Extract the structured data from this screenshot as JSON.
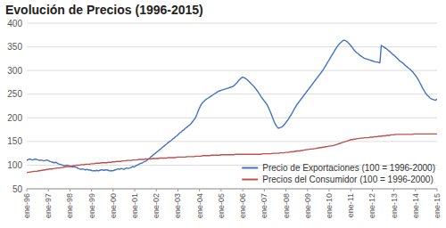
{
  "chart_data": {
    "type": "line",
    "title": "Evolución de Precios (1996-2015)",
    "xlim": [
      0,
      19
    ],
    "xticks": [
      {
        "value": 0,
        "label": "ene-96"
      },
      {
        "value": 1,
        "label": "ene-97"
      },
      {
        "value": 2,
        "label": "ene-98"
      },
      {
        "value": 3,
        "label": "ene-99"
      },
      {
        "value": 4,
        "label": "ene-00"
      },
      {
        "value": 5,
        "label": "ene-01"
      },
      {
        "value": 6,
        "label": "ene-02"
      },
      {
        "value": 7,
        "label": "ene-03"
      },
      {
        "value": 8,
        "label": "ene-04"
      },
      {
        "value": 9,
        "label": "ene-05"
      },
      {
        "value": 10,
        "label": "ene-06"
      },
      {
        "value": 11,
        "label": "ene-07"
      },
      {
        "value": 12,
        "label": "ene-08"
      },
      {
        "value": 13,
        "label": "ene-09"
      },
      {
        "value": 14,
        "label": "ene-10"
      },
      {
        "value": 15,
        "label": "ene-11"
      },
      {
        "value": 16,
        "label": "ene-12"
      },
      {
        "value": 17,
        "label": "ene-13"
      },
      {
        "value": 18,
        "label": "ene-14"
      },
      {
        "value": 19,
        "label": "ene-15"
      }
    ],
    "ylim": [
      50,
      400
    ],
    "yticks": [
      50,
      100,
      150,
      200,
      250,
      300,
      350,
      400
    ],
    "grid": true,
    "legend": "lower right",
    "series": [
      {
        "name": "Precio de Exportaciones (100 = 1996-2000)",
        "color": "#4472C4",
        "values": [
          110,
          112,
          113,
          112,
          111,
          112,
          113,
          112,
          111,
          110,
          111,
          110,
          109,
          110,
          111,
          110,
          108,
          107,
          106,
          105,
          106,
          105,
          103,
          102,
          101,
          100,
          99,
          99,
          100,
          99,
          98,
          97,
          96,
          97,
          96,
          95,
          93,
          92,
          91,
          92,
          91,
          90,
          91,
          90,
          90,
          89,
          88,
          88,
          88,
          89,
          88,
          89,
          90,
          90,
          89,
          90,
          90,
          89,
          88,
          88,
          88,
          89,
          90,
          91,
          92,
          91,
          93,
          92,
          91,
          93,
          94,
          93,
          94,
          95,
          97,
          96,
          98,
          100,
          101,
          103,
          104,
          105,
          107,
          108,
          110,
          113,
          115,
          118,
          120,
          123,
          125,
          128,
          130,
          133,
          135,
          138,
          140,
          143,
          145,
          148,
          150,
          152,
          155,
          157,
          160,
          162,
          165,
          168,
          170,
          173,
          175,
          178,
          180,
          183,
          185,
          188,
          192,
          196,
          200,
          207,
          215,
          222,
          228,
          232,
          235,
          238,
          240,
          242,
          244,
          246,
          248,
          250,
          252,
          254,
          256,
          257,
          258,
          259,
          260,
          261,
          262,
          263,
          264,
          265,
          266,
          268,
          271,
          274,
          278,
          281,
          284,
          286,
          285,
          283,
          281,
          278,
          275,
          272,
          269,
          266,
          262,
          258,
          254,
          249,
          244,
          240,
          236,
          232,
          228,
          222,
          215,
          208,
          200,
          192,
          186,
          181,
          178,
          179,
          180,
          182,
          185,
          189,
          193,
          197,
          202,
          207,
          212,
          218,
          223,
          228,
          232,
          236,
          240,
          244,
          248,
          252,
          256,
          260,
          264,
          268,
          272,
          276,
          280,
          284,
          288,
          292,
          296,
          300,
          305,
          310,
          315,
          320,
          325,
          330,
          335,
          340,
          345,
          350,
          354,
          357,
          360,
          363,
          364,
          363,
          361,
          358,
          355,
          351,
          347,
          343,
          340,
          337,
          335,
          332,
          330,
          328,
          326,
          325,
          324,
          323,
          322,
          321,
          320,
          319,
          318,
          318,
          317,
          316,
          353,
          351,
          349,
          347,
          345,
          342,
          340,
          337,
          334,
          332,
          329,
          326,
          323,
          320,
          318,
          316,
          313,
          310,
          308,
          305,
          303,
          300,
          297,
          293,
          289,
          285,
          280,
          274,
          268,
          262,
          257,
          252,
          248,
          245,
          242,
          240,
          239,
          238,
          237,
          240
        ]
      },
      {
        "name": "Precios del Consumidor (100 = 1996-2000)",
        "color": "#C0504D",
        "values": [
          84,
          85,
          85,
          86,
          86,
          87,
          87,
          87,
          88,
          88,
          89,
          89,
          90,
          90,
          91,
          91,
          92,
          92,
          92,
          93,
          93,
          94,
          94,
          94,
          95,
          95,
          96,
          96,
          97,
          97,
          97,
          98,
          98,
          99,
          99,
          100,
          100,
          100,
          101,
          101,
          101,
          102,
          102,
          102,
          102,
          103,
          103,
          103,
          104,
          104,
          104,
          104,
          105,
          105,
          105,
          105,
          105,
          106,
          106,
          106,
          107,
          107,
          107,
          108,
          108,
          108,
          108,
          109,
          109,
          109,
          110,
          110,
          110,
          110,
          111,
          111,
          111,
          111,
          112,
          112,
          112,
          112,
          112,
          113,
          113,
          113,
          113,
          113,
          114,
          114,
          114,
          114,
          114,
          115,
          115,
          115,
          115,
          115,
          115,
          116,
          116,
          116,
          116,
          116,
          116,
          117,
          117,
          117,
          117,
          117,
          117,
          117,
          118,
          118,
          118,
          118,
          118,
          118,
          119,
          119,
          119,
          119,
          119,
          120,
          120,
          120,
          120,
          120,
          120,
          121,
          121,
          121,
          121,
          121,
          121,
          121,
          122,
          122,
          122,
          122,
          122,
          122,
          122,
          122,
          122,
          122,
          123,
          123,
          123,
          123,
          123,
          123,
          123,
          123,
          123,
          123,
          123,
          123,
          123,
          123,
          123,
          123,
          123,
          123,
          123,
          124,
          124,
          124,
          124,
          124,
          124,
          124,
          125,
          125,
          125,
          125,
          125,
          126,
          126,
          126,
          126,
          127,
          127,
          127,
          128,
          128,
          128,
          129,
          129,
          130,
          130,
          130,
          131,
          131,
          132,
          132,
          133,
          133,
          134,
          134,
          134,
          135,
          135,
          136,
          136,
          137,
          137,
          138,
          138,
          139,
          139,
          140,
          140,
          141,
          141,
          142,
          143,
          144,
          145,
          146,
          147,
          148,
          149,
          150,
          151,
          152,
          153,
          154,
          154,
          155,
          155,
          156,
          156,
          157,
          157,
          157,
          158,
          158,
          158,
          158,
          159,
          159,
          159,
          160,
          160,
          160,
          161,
          161,
          161,
          162,
          162,
          162,
          163,
          163,
          163,
          164,
          164,
          164,
          165,
          165,
          165,
          165,
          165,
          165,
          165,
          165,
          165,
          165,
          165,
          165,
          165,
          166,
          166,
          166,
          166,
          166,
          166,
          166,
          166,
          166,
          166,
          166,
          166,
          166,
          166,
          166,
          166,
          166
        ]
      }
    ]
  }
}
